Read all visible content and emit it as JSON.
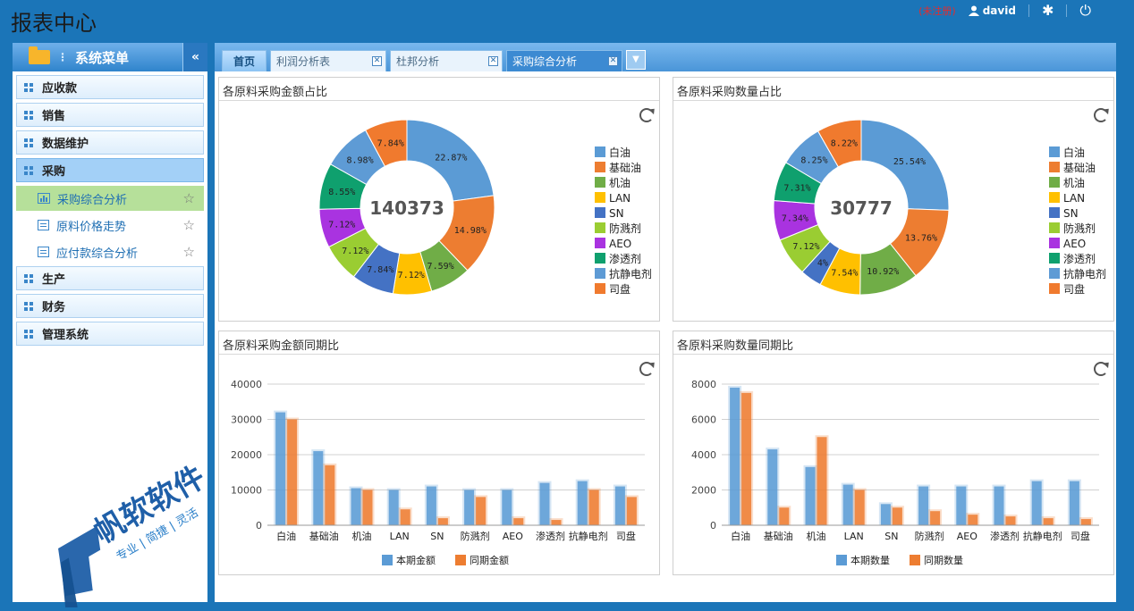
{
  "header": {
    "title": "报表中心",
    "unregistered": "(未注册)",
    "username": "david"
  },
  "sidebar": {
    "title": "系统菜单",
    "collapse_glyph": "«",
    "items": [
      {
        "label": "应收款"
      },
      {
        "label": "销售"
      },
      {
        "label": "数据维护"
      },
      {
        "label": "采购",
        "active": true,
        "children": [
          {
            "label": "采购综合分析",
            "selected": true
          },
          {
            "label": "原料价格走势"
          },
          {
            "label": "应付款综合分析"
          }
        ]
      },
      {
        "label": "生产"
      },
      {
        "label": "财务"
      },
      {
        "label": "管理系统"
      }
    ]
  },
  "tabs": [
    {
      "label": "首页"
    },
    {
      "label": "利润分析表"
    },
    {
      "label": "杜邦分析"
    },
    {
      "label": "采购综合分析",
      "active": true
    }
  ],
  "watermark": {
    "name": "帆软软件",
    "slogan": "专业 | 简捷 | 灵活"
  },
  "legend_items": [
    "白油",
    "基础油",
    "机油",
    "LAN",
    "SN",
    "防溅剂",
    "AEO",
    "渗透剂",
    "抗静电剂",
    "司盘"
  ],
  "colors": [
    "#5b9bd5",
    "#ed7d31",
    "#70ad47",
    "#ffc000",
    "#4472c4",
    "#9acd32",
    "#a933e0",
    "#0fa06e",
    "#5e9bd5",
    "#f07a2e"
  ],
  "chart_data": [
    {
      "type": "pie",
      "title": "各原料采购金额占比",
      "center_label": "140373",
      "categories": [
        "白油",
        "基础油",
        "机油",
        "LAN",
        "SN",
        "防溅剂",
        "AEO",
        "渗透剂",
        "抗静电剂",
        "司盘"
      ],
      "values": [
        22.87,
        14.98,
        7.59,
        7.12,
        7.84,
        7.12,
        7.12,
        8.55,
        8.98,
        7.84
      ],
      "value_labels": [
        "22.87%",
        "14.98%",
        "7.59%",
        "7.12%",
        "7.84%",
        "7.12%",
        "7.12%",
        "8.55%",
        "8.98%",
        "7.84%"
      ],
      "legend": "right"
    },
    {
      "type": "pie",
      "title": "各原料采购数量占比",
      "center_label": "30777",
      "categories": [
        "白油",
        "基础油",
        "机油",
        "LAN",
        "SN",
        "防溅剂",
        "AEO",
        "渗透剂",
        "抗静电剂",
        "司盘"
      ],
      "values": [
        25.54,
        13.76,
        10.92,
        7.54,
        4,
        7.12,
        7.34,
        7.31,
        8.25,
        8.22
      ],
      "value_labels": [
        "25.54%",
        "13.76%",
        "10.92%",
        "7.54%",
        "4%",
        "7.12%",
        "7.34%",
        "7.31%",
        "8.25%",
        "8.22%"
      ],
      "legend": "right"
    },
    {
      "type": "bar",
      "title": "各原料采购金额同期比",
      "categories": [
        "白油",
        "基础油",
        "机油",
        "LAN",
        "SN",
        "防溅剂",
        "AEO",
        "渗透剂",
        "抗静电剂",
        "司盘"
      ],
      "series": [
        {
          "name": "本期金额",
          "values": [
            32000,
            21000,
            10500,
            10000,
            11000,
            10000,
            10000,
            12000,
            12500,
            11000
          ]
        },
        {
          "name": "同期金额",
          "values": [
            30000,
            17000,
            10000,
            4500,
            2000,
            8000,
            2000,
            1500,
            10000,
            8000
          ]
        }
      ],
      "ylim": [
        0,
        40000
      ],
      "yticks": [
        "0",
        "10000",
        "20000",
        "30000",
        "40000"
      ],
      "legend": "bottom",
      "grid": true
    },
    {
      "type": "bar",
      "title": "各原料采购数量同期比",
      "categories": [
        "白油",
        "基础油",
        "机油",
        "LAN",
        "SN",
        "防溅剂",
        "AEO",
        "渗透剂",
        "抗静电剂",
        "司盘"
      ],
      "series": [
        {
          "name": "本期数量",
          "values": [
            7800,
            4300,
            3300,
            2300,
            1200,
            2200,
            2200,
            2200,
            2500,
            2500
          ]
        },
        {
          "name": "同期数量",
          "values": [
            7500,
            1000,
            5000,
            2000,
            1000,
            800,
            600,
            500,
            400,
            350
          ]
        }
      ],
      "ylim": [
        0,
        8000
      ],
      "yticks": [
        "0",
        "2000",
        "4000",
        "6000",
        "8000"
      ],
      "legend": "bottom",
      "grid": true
    }
  ]
}
